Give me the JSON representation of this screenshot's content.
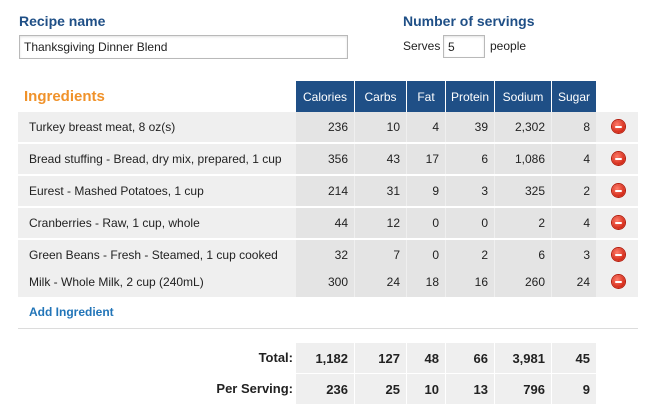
{
  "recipe": {
    "name_label": "Recipe name",
    "name_value": "Thanksgiving Dinner Blend"
  },
  "servings": {
    "label": "Number of servings",
    "prefix": "Serves",
    "value": "5",
    "suffix": "people"
  },
  "ingredients": {
    "title": "Ingredients",
    "columns": [
      "Calories",
      "Carbs",
      "Fat",
      "Protein",
      "Sodium",
      "Sugar"
    ],
    "rows": [
      {
        "name": "Turkey breast meat, 8 oz(s)",
        "values": [
          "236",
          "10",
          "4",
          "39",
          "2,302",
          "8"
        ]
      },
      {
        "name": "Bread stuffing - Bread, dry mix, prepared, 1 cup",
        "values": [
          "356",
          "43",
          "17",
          "6",
          "1,086",
          "4"
        ]
      },
      {
        "name": "Eurest - Mashed Potatoes, 1 cup",
        "values": [
          "214",
          "31",
          "9",
          "3",
          "325",
          "2"
        ]
      },
      {
        "name": "Cranberries - Raw, 1 cup, whole",
        "values": [
          "44",
          "12",
          "0",
          "0",
          "2",
          "4"
        ]
      },
      {
        "name": "Green Beans - Fresh - Steamed, 1 cup cooked",
        "values": [
          "32",
          "7",
          "0",
          "2",
          "6",
          "3"
        ]
      },
      {
        "name": "Milk - Whole Milk, 2 cup (240mL)",
        "values": [
          "300",
          "24",
          "18",
          "16",
          "260",
          "24"
        ]
      }
    ],
    "add_label": "Add Ingredient",
    "remove_icon": "minus-circle-icon",
    "remove_color": "#d42a18"
  },
  "totals": {
    "total_label": "Total:",
    "total_values": [
      "1,182",
      "127",
      "48",
      "66",
      "3,981",
      "45"
    ],
    "per_serving_label": "Per Serving:",
    "per_serving_values": [
      "236",
      "25",
      "10",
      "13",
      "796",
      "9"
    ]
  },
  "colors": {
    "header_blue": "#1f4f86",
    "ingredients_orange": "#f0922a",
    "link_blue": "#2275b8"
  }
}
